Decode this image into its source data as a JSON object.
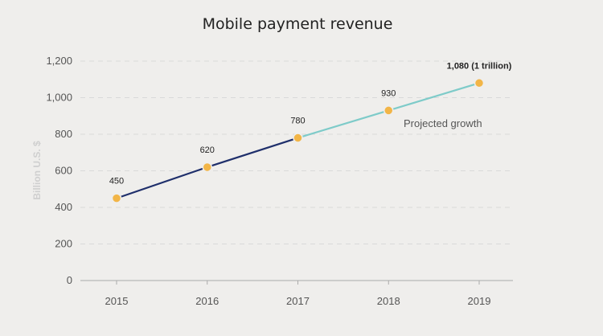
{
  "chart_data": {
    "type": "line",
    "title": "Mobile payment revenue",
    "ylabel": "Billion U.S. $",
    "xlabel": "",
    "categories": [
      "2015",
      "2016",
      "2017",
      "2018",
      "2019"
    ],
    "values": [
      450,
      620,
      780,
      930,
      1080
    ],
    "data_labels": [
      "450",
      "620",
      "780",
      "930",
      "1,080 (1 trillion)"
    ],
    "projected_from_index": 2,
    "annotation": "Projected growth",
    "ylim": [
      0,
      1200
    ],
    "yticks": [
      0,
      200,
      400,
      600,
      800,
      1000,
      1200
    ],
    "ytick_labels": [
      "0",
      "200",
      "400",
      "600",
      "800",
      "1,000",
      "1,200"
    ],
    "grid": true,
    "colors": {
      "actual_line": "#1f2f6b",
      "projected_line": "#7ecbc9",
      "marker": "#f2b547",
      "grid": "#d9d9d9",
      "axis": "#aaaaaa"
    }
  }
}
